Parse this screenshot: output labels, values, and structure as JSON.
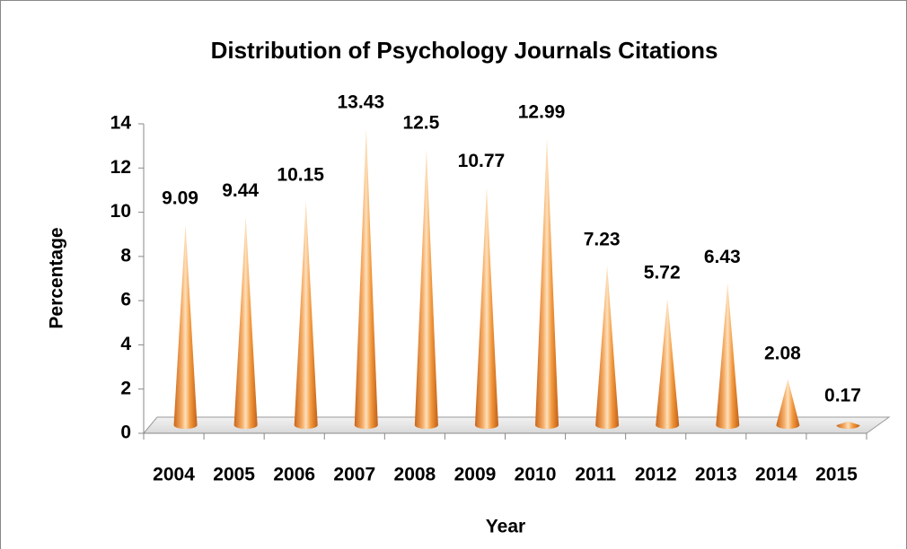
{
  "chart_data": {
    "type": "cone",
    "title": "Distribution of Psychology Journals Citations",
    "x_label": "Year",
    "y_label": "Percentage",
    "categories": [
      "2004",
      "2005",
      "2006",
      "2007",
      "2008",
      "2009",
      "2010",
      "2011",
      "2012",
      "2013",
      "2014",
      "2015"
    ],
    "values": [
      9.09,
      9.44,
      10.15,
      13.43,
      12.5,
      10.77,
      12.99,
      7.23,
      5.72,
      6.43,
      2.08,
      0.17
    ],
    "color": "#f39a3e",
    "ylim": [
      0,
      14
    ],
    "yticks": [
      0,
      2,
      4,
      6,
      8,
      10,
      12,
      14
    ],
    "grid": false
  }
}
